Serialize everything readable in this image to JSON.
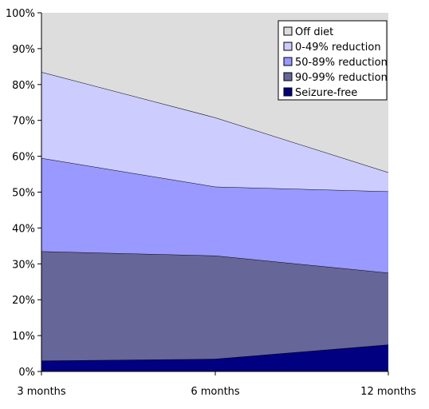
{
  "chart_data": {
    "type": "area",
    "stacked": true,
    "categories": [
      "3 months",
      "6 months",
      "12 months"
    ],
    "ylim": [
      0,
      100
    ],
    "y_ticks": [
      "0%",
      "10%",
      "20%",
      "30%",
      "40%",
      "50%",
      "60%",
      "70%",
      "80%",
      "90%",
      "100%"
    ],
    "legend_position": "top-right",
    "series": [
      {
        "name": "Seizure-free",
        "color": "#000080",
        "values": [
          3,
          3.5,
          7.5
        ]
      },
      {
        "name": "90-99% reduction",
        "color": "#666699",
        "values": [
          30.5,
          28.8,
          20
        ]
      },
      {
        "name": "50-89% reduction",
        "color": "#9999ff",
        "values": [
          26,
          19.2,
          22.7
        ]
      },
      {
        "name": "0-49% reduction",
        "color": "#ccccff",
        "values": [
          24,
          19.3,
          5.3
        ]
      },
      {
        "name": "Off diet",
        "color": "#dddddd",
        "values": [
          16.5,
          29.2,
          44.5
        ]
      }
    ]
  }
}
